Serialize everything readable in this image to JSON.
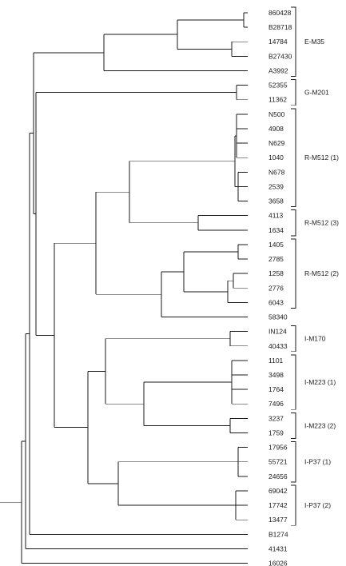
{
  "leaves": [
    "860428",
    "B28718",
    "14784",
    "B27430",
    "A3992",
    "52355",
    "11362",
    "N500",
    "4908",
    "N629",
    "1040",
    "N678",
    "2539",
    "3658",
    "4113",
    "1634",
    "1405",
    "2785",
    "1258",
    "2776",
    "6043",
    "58340",
    "IN124",
    "40433",
    "1101",
    "3498",
    "1764",
    "7496",
    "3237",
    "1759",
    "17956",
    "55721",
    "24656",
    "69042",
    "17742",
    "13477",
    "B1274",
    "41431",
    "16026"
  ],
  "groups": [
    {
      "label": "E-M35",
      "from": 0,
      "to": 4
    },
    {
      "label": "G-M201",
      "from": 5,
      "to": 6
    },
    {
      "label": "R-M512 (1)",
      "from": 7,
      "to": 13
    },
    {
      "label": "R-M512 (3)",
      "from": 14,
      "to": 15
    },
    {
      "label": "R-M512 (2)",
      "from": 16,
      "to": 20
    },
    {
      "label": "I-M170",
      "from": 22,
      "to": 23
    },
    {
      "label": "I-M223 (1)",
      "from": 24,
      "to": 27
    },
    {
      "label": "I-M223 (2)",
      "from": 28,
      "to": 29
    },
    {
      "label": "I-P37 (1)",
      "from": 30,
      "to": 32
    },
    {
      "label": "I-P37 (2)",
      "from": 33,
      "to": 35
    }
  ]
}
